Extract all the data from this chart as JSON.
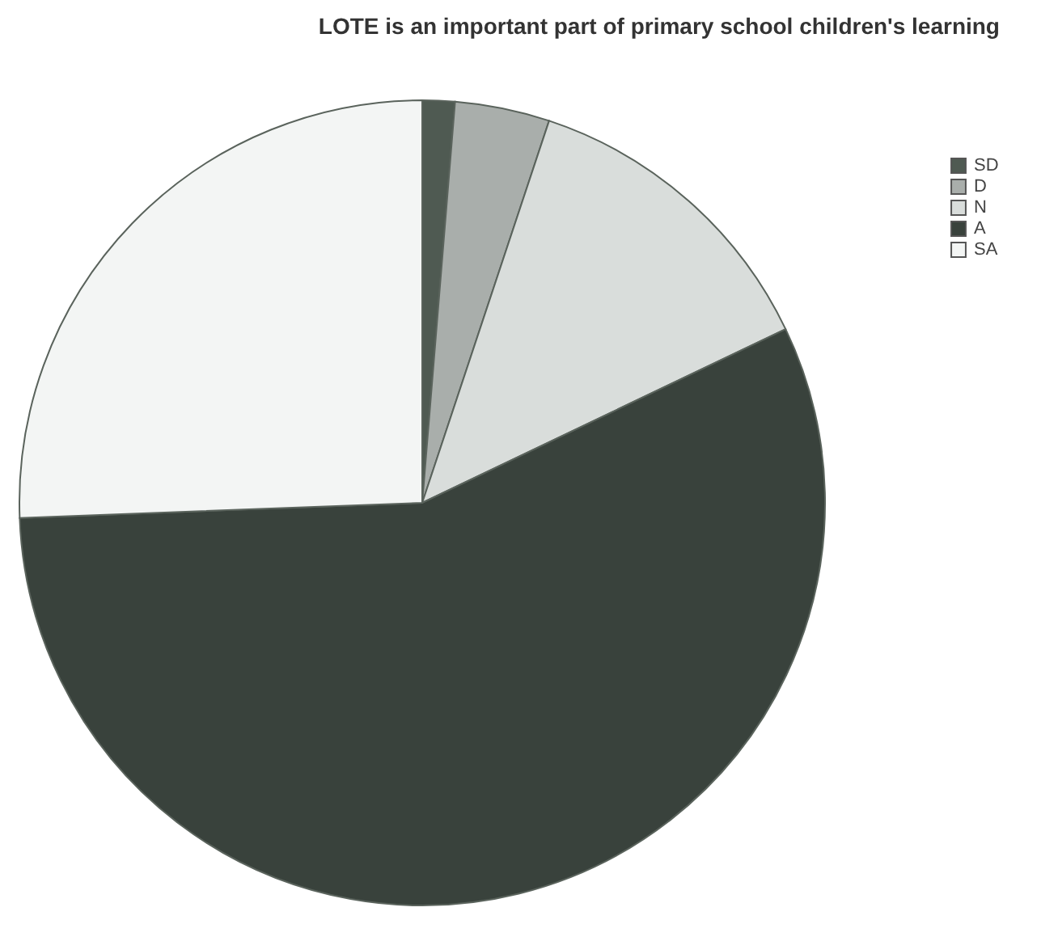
{
  "chart_data": {
    "type": "pie",
    "title": "LOTE is an important part of primary school children's learning",
    "categories": [
      "SD",
      "D",
      "N",
      "A",
      "SA"
    ],
    "values": [
      1.3,
      3.8,
      12.8,
      56.5,
      25.6
    ],
    "colors": [
      "#4f5a52",
      "#a9aeab",
      "#d9dddb",
      "#39423c",
      "#f3f5f4"
    ],
    "legend": "top right"
  }
}
